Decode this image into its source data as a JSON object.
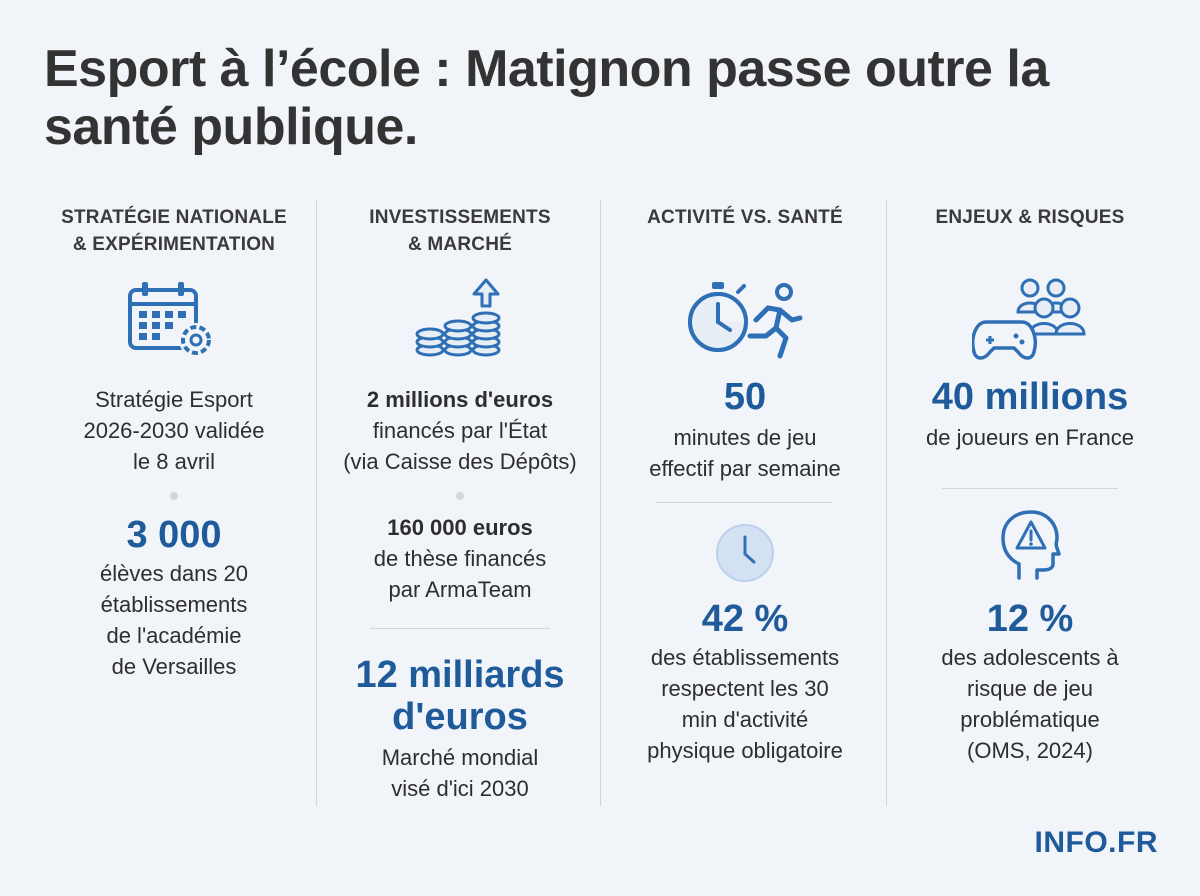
{
  "title": "Esport à l’école : Matignon passe outre la santé publique.",
  "brand": "INFO.FR",
  "accent_color": "#1f5a9a",
  "columns": [
    {
      "heading_line1": "STRATÉGIE NATIONALE",
      "heading_line2": "& EXPÉRIMENTATION",
      "icon": "calendar-gear-icon",
      "text1": [
        "Stratégie Esport",
        "2026-2030 validée",
        "le 8 avril"
      ],
      "stat": "3 000",
      "text2": [
        "élèves dans 20",
        "établissements",
        "de l'académie",
        "de Versailles"
      ]
    },
    {
      "heading_line1": "INVESTISSEMENTS",
      "heading_line2": "& MARCHÉ",
      "icon": "coins-growth-icon",
      "amount1": "2 millions d'euros",
      "text1": [
        "financés par l'État",
        "(via Caisse des Dépôts)"
      ],
      "amount2": "160 000 euros",
      "text2": [
        "de thèse financés",
        "par ArmaTeam"
      ],
      "stat_line1": "12 milliards",
      "stat_line2": "d'euros",
      "text3": [
        "Marché mondial",
        "visé d'ici 2030"
      ]
    },
    {
      "heading_line1": "ACTIVITÉ VS. SANTÉ",
      "icon1": "stopwatch-runner-icon",
      "stat1": "50",
      "text1": [
        "minutes de jeu",
        "effectif par semaine"
      ],
      "icon2": "clock-icon",
      "stat2": "42 %",
      "text2": [
        "des établissements",
        "respectent les 30",
        "min d'activité",
        "physique obligatoire"
      ]
    },
    {
      "heading_line1": "ENJEUX & RISQUES",
      "icon1": "controller-crowd-icon",
      "stat1": "40 millions",
      "text1": [
        "de joueurs en France"
      ],
      "icon2": "head-warning-icon",
      "stat2": "12 %",
      "text2": [
        "des adolescents à",
        "risque de jeu",
        "problématique",
        "(OMS, 2024)"
      ]
    }
  ]
}
